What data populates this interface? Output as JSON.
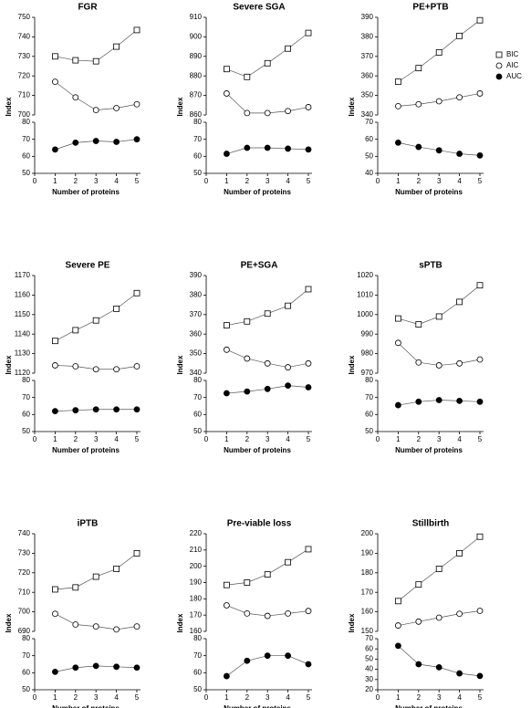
{
  "chart_data": [
    {
      "type": "line",
      "title": "FGR",
      "xlabel": "Number of proteins",
      "ylabel": "Index",
      "x": [
        1,
        2,
        3,
        4,
        5
      ],
      "xlim": [
        0,
        5
      ],
      "xticks": [
        0,
        1,
        2,
        3,
        4,
        5
      ],
      "ylim": [
        700,
        750
      ],
      "yticks": [
        700,
        710,
        720,
        730,
        740,
        750
      ],
      "y2lim": [
        50,
        80
      ],
      "y2ticks": [
        50,
        60,
        70,
        80
      ],
      "series": [
        {
          "name": "BIC",
          "marker": "square",
          "color": "#000000",
          "values": [
            730,
            728,
            727.5,
            735,
            743.5
          ]
        },
        {
          "name": "AIC",
          "marker": "circle",
          "color": "#000000",
          "values": [
            717,
            709,
            702.5,
            703.5,
            705.5
          ]
        },
        {
          "name": "AUC",
          "marker": "filled-circle",
          "color": "#000000",
          "axis": "y2",
          "values": [
            64,
            68,
            69,
            68.5,
            70
          ]
        }
      ]
    },
    {
      "type": "line",
      "title": "Severe SGA",
      "xlabel": "Number of proteins",
      "ylabel": "Index",
      "x": [
        1,
        2,
        3,
        4,
        5
      ],
      "xlim": [
        0,
        5
      ],
      "xticks": [
        0,
        1,
        2,
        3,
        4,
        5
      ],
      "ylim": [
        860,
        910
      ],
      "yticks": [
        860,
        870,
        880,
        890,
        900,
        910
      ],
      "y2lim": [
        50,
        80
      ],
      "y2ticks": [
        50,
        60,
        70,
        80
      ],
      "series": [
        {
          "name": "BIC",
          "marker": "square",
          "color": "#000000",
          "values": [
            883.5,
            879.5,
            886.5,
            894,
            902
          ]
        },
        {
          "name": "AIC",
          "marker": "circle",
          "color": "#000000",
          "values": [
            871,
            861,
            861,
            862,
            864
          ]
        },
        {
          "name": "AUC",
          "marker": "filled-circle",
          "color": "#000000",
          "axis": "y2",
          "values": [
            61.5,
            65,
            65,
            64.5,
            64
          ]
        }
      ]
    },
    {
      "type": "line",
      "title": "PE+PTB",
      "xlabel": "Number of proteins",
      "ylabel": "Index",
      "legend": "right",
      "x": [
        1,
        2,
        3,
        4,
        5
      ],
      "xlim": [
        0,
        5
      ],
      "xticks": [
        0,
        1,
        2,
        3,
        4,
        5
      ],
      "ylim": [
        340,
        390
      ],
      "yticks": [
        340,
        350,
        360,
        370,
        380,
        390
      ],
      "y2lim": [
        40,
        70
      ],
      "y2ticks": [
        40,
        50,
        60,
        70
      ],
      "series": [
        {
          "name": "BIC",
          "marker": "square",
          "color": "#000000",
          "values": [
            357,
            364,
            372,
            380.5,
            388.5
          ]
        },
        {
          "name": "AIC",
          "marker": "circle",
          "color": "#000000",
          "values": [
            344.5,
            345.5,
            347,
            349,
            351
          ]
        },
        {
          "name": "AUC",
          "marker": "filled-circle",
          "color": "#000000",
          "axis": "y2",
          "values": [
            58,
            55.5,
            53.5,
            51.5,
            50.5
          ]
        }
      ]
    },
    {
      "type": "line",
      "title": "Severe PE",
      "xlabel": "Number of proteins",
      "ylabel": "Index",
      "x": [
        1,
        2,
        3,
        4,
        5
      ],
      "xlim": [
        0,
        5
      ],
      "xticks": [
        0,
        1,
        2,
        3,
        4,
        5
      ],
      "ylim": [
        1120,
        1170
      ],
      "yticks": [
        1120,
        1130,
        1140,
        1150,
        1160,
        1170
      ],
      "y2lim": [
        50,
        80
      ],
      "y2ticks": [
        50,
        60,
        70,
        80
      ],
      "series": [
        {
          "name": "BIC",
          "marker": "square",
          "color": "#000000",
          "values": [
            1136.5,
            1142,
            1147,
            1153,
            1161
          ]
        },
        {
          "name": "AIC",
          "marker": "circle",
          "color": "#000000",
          "values": [
            1124,
            1123.5,
            1122,
            1122,
            1123.5
          ]
        },
        {
          "name": "AUC",
          "marker": "filled-circle",
          "color": "#000000",
          "axis": "y2",
          "values": [
            62,
            62.5,
            63,
            63,
            63
          ]
        }
      ]
    },
    {
      "type": "line",
      "title": "PE+SGA",
      "xlabel": "Number of proteins",
      "ylabel": "Index",
      "x": [
        1,
        2,
        3,
        4,
        5
      ],
      "xlim": [
        0,
        5
      ],
      "xticks": [
        0,
        1,
        2,
        3,
        4,
        5
      ],
      "ylim": [
        340,
        390
      ],
      "yticks": [
        340,
        350,
        360,
        370,
        380,
        390
      ],
      "y2lim": [
        50,
        80
      ],
      "y2ticks": [
        50,
        60,
        70,
        80
      ],
      "series": [
        {
          "name": "BIC",
          "marker": "square",
          "color": "#000000",
          "values": [
            364.5,
            366.5,
            370.5,
            374.5,
            383
          ]
        },
        {
          "name": "AIC",
          "marker": "circle",
          "color": "#000000",
          "values": [
            352,
            347.5,
            345,
            343,
            345
          ]
        },
        {
          "name": "AUC",
          "marker": "filled-circle",
          "color": "#000000",
          "axis": "y2",
          "values": [
            72.5,
            73.5,
            75,
            77,
            76
          ]
        }
      ]
    },
    {
      "type": "line",
      "title": "sPTB",
      "xlabel": "Number of proteins",
      "ylabel": "Index",
      "x": [
        1,
        2,
        3,
        4,
        5
      ],
      "xlim": [
        0,
        5
      ],
      "xticks": [
        0,
        1,
        2,
        3,
        4,
        5
      ],
      "ylim": [
        970,
        1020
      ],
      "yticks": [
        970,
        980,
        990,
        1000,
        1010,
        1020
      ],
      "y2lim": [
        50,
        80
      ],
      "y2ticks": [
        50,
        60,
        70,
        80
      ],
      "series": [
        {
          "name": "BIC",
          "marker": "square",
          "color": "#000000",
          "values": [
            998,
            995,
            999,
            1006.5,
            1015
          ]
        },
        {
          "name": "AIC",
          "marker": "circle",
          "color": "#000000",
          "values": [
            985.5,
            975.5,
            974,
            975,
            977
          ]
        },
        {
          "name": "AUC",
          "marker": "filled-circle",
          "color": "#000000",
          "axis": "y2",
          "values": [
            65.5,
            67.5,
            68.5,
            68,
            67.5
          ]
        }
      ]
    },
    {
      "type": "line",
      "title": "iPTB",
      "xlabel": "Number of proteins",
      "ylabel": "Index",
      "x": [
        1,
        2,
        3,
        4,
        5
      ],
      "xlim": [
        0,
        5
      ],
      "xticks": [
        0,
        1,
        2,
        3,
        4,
        5
      ],
      "ylim": [
        690,
        740
      ],
      "yticks": [
        690,
        700,
        710,
        720,
        730,
        740
      ],
      "y2lim": [
        50,
        80
      ],
      "y2ticks": [
        50,
        60,
        70,
        80
      ],
      "series": [
        {
          "name": "BIC",
          "marker": "square",
          "color": "#000000",
          "values": [
            711.5,
            712.5,
            718,
            722,
            730
          ]
        },
        {
          "name": "AIC",
          "marker": "circle",
          "color": "#000000",
          "values": [
            699,
            693.5,
            692.5,
            691,
            692.5
          ]
        },
        {
          "name": "AUC",
          "marker": "filled-circle",
          "color": "#000000",
          "axis": "y2",
          "values": [
            60.5,
            63,
            64,
            63.5,
            63
          ]
        }
      ]
    },
    {
      "type": "line",
      "title": "Pre-viable loss",
      "xlabel": "Number of proteins",
      "ylabel": "Index",
      "x": [
        1,
        2,
        3,
        4,
        5
      ],
      "xlim": [
        0,
        5
      ],
      "xticks": [
        0,
        1,
        2,
        3,
        4,
        5
      ],
      "ylim": [
        160,
        220
      ],
      "yticks": [
        160,
        170,
        180,
        190,
        200,
        210,
        220
      ],
      "y2lim": [
        50,
        80
      ],
      "y2ticks": [
        50,
        60,
        70,
        80
      ],
      "series": [
        {
          "name": "BIC",
          "marker": "square",
          "color": "#000000",
          "values": [
            188.5,
            190,
            195,
            202.5,
            210.5
          ]
        },
        {
          "name": "AIC",
          "marker": "circle",
          "color": "#000000",
          "values": [
            176,
            171,
            169.5,
            171,
            172.5
          ]
        },
        {
          "name": "AUC",
          "marker": "filled-circle",
          "color": "#000000",
          "axis": "y2",
          "values": [
            58,
            67,
            70,
            70,
            65
          ]
        }
      ]
    },
    {
      "type": "line",
      "title": "Stillbirth",
      "xlabel": "Number of proteins",
      "ylabel": "Index",
      "x": [
        1,
        2,
        3,
        4,
        5
      ],
      "xlim": [
        0,
        5
      ],
      "xticks": [
        0,
        1,
        2,
        3,
        4,
        5
      ],
      "ylim": [
        150,
        200
      ],
      "yticks": [
        150,
        160,
        170,
        180,
        190,
        200
      ],
      "y2lim": [
        20,
        70
      ],
      "y2ticks": [
        20,
        30,
        40,
        50,
        60,
        70
      ],
      "series": [
        {
          "name": "BIC",
          "marker": "square",
          "color": "#000000",
          "values": [
            165.5,
            174,
            182,
            190,
            198.5
          ]
        },
        {
          "name": "AIC",
          "marker": "circle",
          "color": "#000000",
          "values": [
            153,
            155,
            157,
            159,
            160.5
          ]
        },
        {
          "name": "AUC",
          "marker": "filled-circle",
          "color": "#000000",
          "axis": "y2",
          "values": [
            63,
            45,
            42,
            36,
            33.5
          ]
        }
      ]
    }
  ]
}
